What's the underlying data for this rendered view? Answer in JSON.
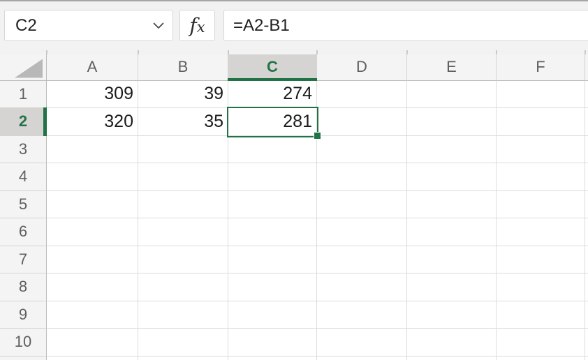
{
  "toolbar": {
    "name_box_value": "C2",
    "fx_label": "fx",
    "formula_value": "=A2-B1"
  },
  "grid": {
    "columns": [
      "A",
      "B",
      "C",
      "D",
      "E",
      "F"
    ],
    "rows": [
      "1",
      "2",
      "3",
      "4",
      "5",
      "6",
      "7",
      "8",
      "9",
      "10"
    ],
    "cells": {
      "A1": "309",
      "B1": "39",
      "C1": "274",
      "A2": "320",
      "B2": "35",
      "C2": "281"
    },
    "selection": {
      "active_cell": "C2",
      "column": "C",
      "row": "2"
    }
  },
  "colors": {
    "accent_green": "#217346",
    "selected_header_bg": "#d6d3d3",
    "header_bg": "#f5f4f4",
    "gridline": "#dcdcdc"
  }
}
